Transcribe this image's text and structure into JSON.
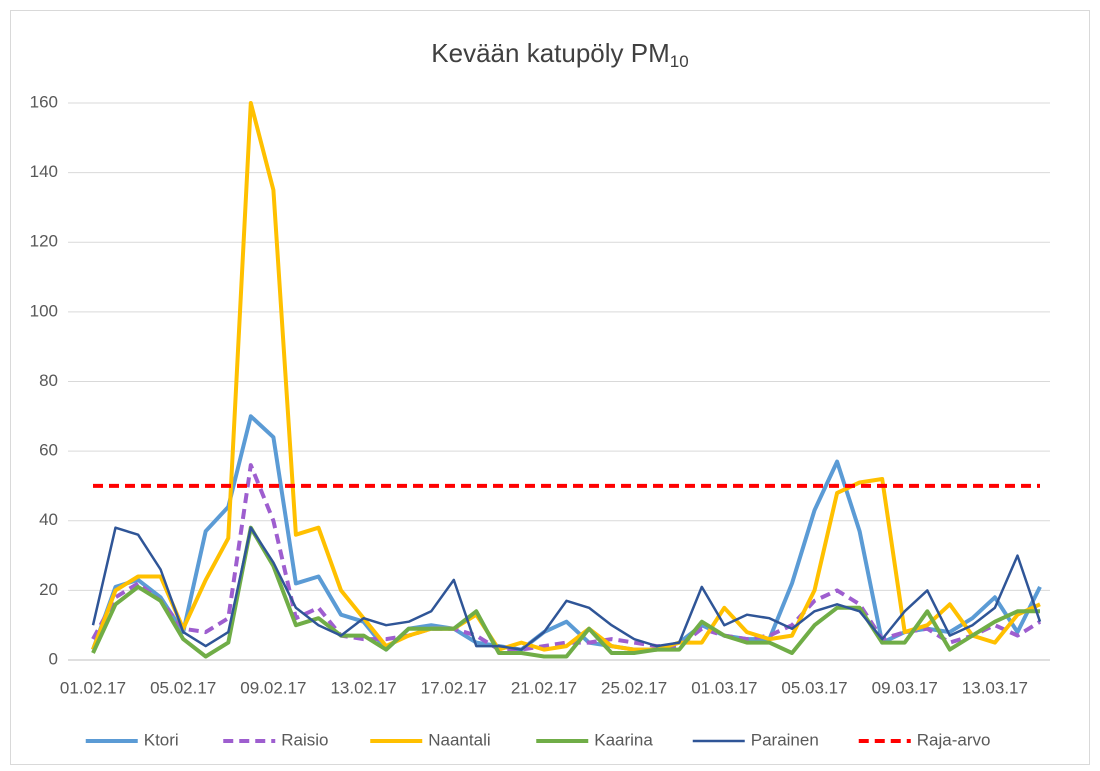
{
  "chart_data": {
    "type": "line",
    "title": "Kevään katupöly PM",
    "title_subscript": "10",
    "categories": [
      "01.02.17",
      null,
      null,
      null,
      "05.02.17",
      null,
      null,
      null,
      "09.02.17",
      null,
      null,
      null,
      "13.02.17",
      null,
      null,
      null,
      "17.02.17",
      null,
      null,
      null,
      "21.02.17",
      null,
      null,
      null,
      "25.02.17",
      null,
      null,
      null,
      "01.03.17",
      null,
      null,
      null,
      "05.03.17",
      null,
      null,
      null,
      "09.03.17",
      null,
      null,
      null,
      "13.03.17",
      null,
      null
    ],
    "ylim": [
      0,
      160
    ],
    "yticks": [
      0,
      20,
      40,
      60,
      80,
      100,
      120,
      140,
      160
    ],
    "grid": true,
    "legend": "bottom",
    "series": [
      {
        "name": "Ktori",
        "color": "#5b9bd5",
        "width": 4,
        "dash": false,
        "values": [
          3,
          21,
          23,
          18,
          8,
          37,
          44,
          70,
          64,
          22,
          24,
          13,
          11,
          3,
          9,
          10,
          9,
          5,
          4,
          3,
          8,
          11,
          5,
          4,
          3,
          3,
          5,
          10,
          7,
          6,
          6,
          22,
          43,
          57,
          37,
          5,
          8,
          9,
          8,
          12,
          18,
          8,
          21
        ]
      },
      {
        "name": "Raisio",
        "color": "#9e5ecf",
        "width": 4,
        "dash": true,
        "values": [
          6,
          18,
          22,
          17,
          9,
          8,
          12,
          56,
          40,
          12,
          15,
          7,
          6,
          6,
          7,
          9,
          9,
          7,
          3,
          3,
          4,
          5,
          5,
          6,
          5,
          4,
          4,
          9,
          7,
          6,
          7,
          10,
          17,
          20,
          16,
          6,
          8,
          9,
          5,
          7,
          10,
          7,
          11
        ]
      },
      {
        "name": "Naantali",
        "color": "#ffc000",
        "width": 4,
        "dash": false,
        "values": [
          3,
          20,
          24,
          24,
          9,
          23,
          35,
          160,
          135,
          36,
          38,
          20,
          12,
          4,
          7,
          9,
          9,
          13,
          3,
          5,
          3,
          4,
          9,
          4,
          3,
          3,
          5,
          5,
          15,
          8,
          6,
          7,
          20,
          48,
          51,
          52,
          8,
          10,
          16,
          7,
          5,
          13,
          16
        ]
      },
      {
        "name": "Kaarina",
        "color": "#70ad47",
        "width": 4,
        "dash": false,
        "values": [
          2,
          16,
          21,
          17,
          6,
          1,
          5,
          38,
          27,
          10,
          12,
          7,
          7,
          3,
          9,
          9,
          9,
          14,
          2,
          2,
          1,
          1,
          9,
          2,
          2,
          3,
          3,
          11,
          7,
          5,
          5,
          2,
          10,
          15,
          15,
          5,
          5,
          14,
          3,
          7,
          11,
          14,
          14
        ]
      },
      {
        "name": "Parainen",
        "color": "#2f5597",
        "width": 2.5,
        "dash": false,
        "values": [
          10,
          38,
          36,
          26,
          8,
          4,
          8,
          38,
          28,
          15,
          10,
          7,
          12,
          10,
          11,
          14,
          23,
          4,
          4,
          3,
          8,
          17,
          15,
          10,
          6,
          4,
          5,
          21,
          10,
          13,
          12,
          9,
          14,
          16,
          14,
          6,
          14,
          20,
          7,
          10,
          15,
          30,
          11
        ]
      },
      {
        "name": "Raja-arvo",
        "color": "#ff0000",
        "width": 4,
        "dash": true,
        "values": [
          50,
          50,
          50,
          50,
          50,
          50,
          50,
          50,
          50,
          50,
          50,
          50,
          50,
          50,
          50,
          50,
          50,
          50,
          50,
          50,
          50,
          50,
          50,
          50,
          50,
          50,
          50,
          50,
          50,
          50,
          50,
          50,
          50,
          50,
          50,
          50,
          50,
          50,
          50,
          50,
          50,
          50,
          50
        ]
      }
    ]
  }
}
